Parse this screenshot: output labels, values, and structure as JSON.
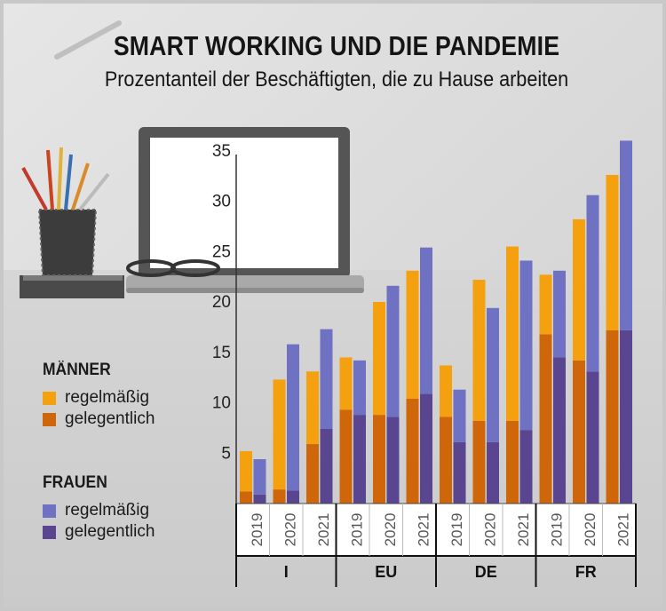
{
  "title": "SMART WORKING UND DIE PANDEMIE",
  "subtitle": "Prozentanteil der Beschäftigten, die zu Hause arbeiten",
  "legend": {
    "men": {
      "heading": "MÄNNER",
      "items": [
        {
          "label": "regelmäßig",
          "color": "#f5a00f"
        },
        {
          "label": "gelegentlich",
          "color": "#d0660a"
        }
      ]
    },
    "women": {
      "heading": "FRAUEN",
      "items": [
        {
          "label": "regelmäßig",
          "color": "#6f72c2"
        },
        {
          "label": "gelegentlich",
          "color": "#5a4690"
        }
      ]
    }
  },
  "chart_data": {
    "type": "bar",
    "stacked": true,
    "grouped": true,
    "ylim": [
      0,
      36
    ],
    "yticks": [
      5,
      10,
      15,
      20,
      25,
      30,
      35
    ],
    "grid": false,
    "groups": [
      "I",
      "EU",
      "DE",
      "FR"
    ],
    "years": [
      "2019",
      "2020",
      "2021"
    ],
    "series": [
      {
        "group": "Männer",
        "name": "regelmäßig",
        "color": "#f5a00f",
        "component": "total_minus_occasional"
      },
      {
        "group": "Männer",
        "name": "gelegentlich",
        "color": "#d0660a"
      },
      {
        "group": "Frauen",
        "name": "regelmäßig",
        "color": "#6f72c2",
        "component": "total_minus_occasional"
      },
      {
        "group": "Frauen",
        "name": "gelegentlich",
        "color": "#5a4690"
      }
    ],
    "values": {
      "I": {
        "2019": {
          "men_occasional": 1.2,
          "men_total": 5.2,
          "women_occasional": 0.9,
          "women_total": 4.4
        },
        "2020": {
          "men_occasional": 1.4,
          "men_total": 12.3,
          "women_occasional": 1.3,
          "women_total": 15.8
        },
        "2021": {
          "men_occasional": 5.9,
          "men_total": 13.1,
          "women_occasional": 7.4,
          "women_total": 17.3
        }
      },
      "EU": {
        "2019": {
          "men_occasional": 9.3,
          "men_total": 14.5,
          "women_occasional": 8.8,
          "women_total": 14.2
        },
        "2020": {
          "men_occasional": 8.8,
          "men_total": 20.0,
          "women_occasional": 8.6,
          "women_total": 21.6
        },
        "2021": {
          "men_occasional": 10.4,
          "men_total": 23.1,
          "women_occasional": 10.9,
          "women_total": 25.4
        }
      },
      "DE": {
        "2019": {
          "men_occasional": 8.6,
          "men_total": 13.7,
          "women_occasional": 6.1,
          "women_total": 11.3
        },
        "2020": {
          "men_occasional": 8.2,
          "men_total": 22.2,
          "women_occasional": 6.1,
          "women_total": 19.4
        },
        "2021": {
          "men_occasional": 8.2,
          "men_total": 25.5,
          "women_occasional": 7.3,
          "women_total": 24.1
        }
      },
      "FR": {
        "2019": {
          "men_occasional": 16.8,
          "men_total": 22.7,
          "women_occasional": 14.5,
          "women_total": 23.1
        },
        "2020": {
          "men_occasional": 14.2,
          "men_total": 28.2,
          "women_occasional": 13.1,
          "women_total": 30.6
        },
        "2021": {
          "men_occasional": 17.2,
          "men_total": 32.6,
          "women_occasional": 17.2,
          "women_total": 36.0
        }
      }
    }
  }
}
